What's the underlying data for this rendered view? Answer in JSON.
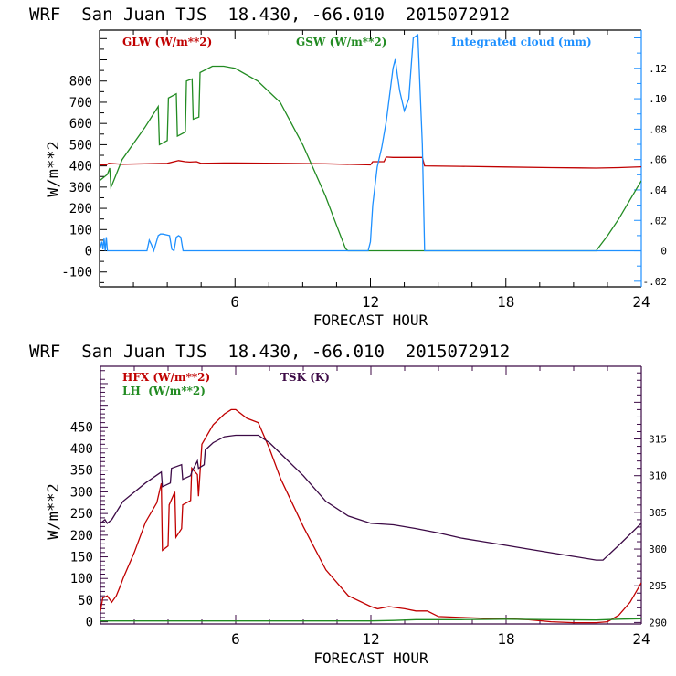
{
  "chart_data": [
    {
      "type": "line",
      "title": "WRF  San Juan TJS  18.430, -66.010  2015072912",
      "xlabel": "FORECAST HOUR",
      "ylabel": "W/m**2",
      "xlim": [
        0,
        24
      ],
      "xticks": [
        "6",
        "12",
        "18",
        "24"
      ],
      "xtick_values": [
        6,
        12,
        18,
        24
      ],
      "ylim": [
        -170,
        1040
      ],
      "yticks": [
        "-100",
        "0",
        "100",
        "200",
        "300",
        "400",
        "500",
        "600",
        "700",
        "800"
      ],
      "ytick_values": [
        -100,
        0,
        100,
        200,
        300,
        400,
        500,
        600,
        700,
        800
      ],
      "y2lim": [
        -0.0237,
        0.1451
      ],
      "y2ticks": [
        "-.02",
        "0",
        ".02",
        ".04",
        ".06",
        ".08",
        ".10",
        ".12"
      ],
      "y2tick_values": [
        -0.02,
        0,
        0.02,
        0.04,
        0.06,
        0.08,
        0.1,
        0.12
      ],
      "y2_color": "#1e90ff",
      "frame_color": "#000000",
      "legend": [
        {
          "label": "GLW (W/m**2)",
          "color": "#c00000",
          "position": "top-left"
        },
        {
          "label": "GSW (W/m**2)",
          "color": "#228b22",
          "position": "top-center"
        },
        {
          "label": "Integrated cloud (mm)",
          "color": "#1e90ff",
          "position": "top-right"
        }
      ],
      "series": [
        {
          "name": "GLW",
          "color": "#c00000",
          "axis": "left",
          "x": [
            0,
            0.3,
            0.4,
            1,
            2,
            3,
            3.5,
            3.8,
            4,
            4.3,
            4.5,
            5.5,
            6,
            8,
            10,
            12,
            12.1,
            12.6,
            12.7,
            13,
            14,
            14.3,
            14.4,
            16,
            18,
            20,
            22,
            23,
            24
          ],
          "y": [
            405,
            405,
            412,
            408,
            410,
            412,
            425,
            420,
            418,
            420,
            412,
            414,
            414,
            412,
            410,
            405,
            420,
            420,
            442,
            440,
            440,
            440,
            400,
            398,
            395,
            392,
            390,
            392,
            396
          ]
        },
        {
          "name": "GSW",
          "color": "#228b22",
          "axis": "left",
          "x": [
            0,
            0.35,
            0.45,
            0.5,
            0.55,
            1,
            2,
            2.6,
            2.65,
            3.0,
            3.05,
            3.4,
            3.45,
            3.8,
            3.85,
            4.1,
            4.15,
            4.4,
            4.45,
            5,
            5.5,
            6,
            7,
            8,
            9,
            10,
            10.5,
            10.9,
            11,
            22,
            22.5,
            23,
            23.5,
            24
          ],
          "y": [
            330,
            360,
            390,
            300,
            310,
            430,
            580,
            680,
            500,
            520,
            720,
            740,
            540,
            560,
            800,
            810,
            620,
            630,
            840,
            870,
            870,
            860,
            800,
            700,
            500,
            260,
            120,
            10,
            0,
            0,
            70,
            150,
            240,
            330
          ]
        },
        {
          "name": "Integrated cloud",
          "color": "#1e90ff",
          "axis": "right",
          "x": [
            0,
            0.05,
            0.1,
            0.15,
            0.2,
            0.25,
            0.3,
            0.35,
            0.4,
            0.5,
            1,
            2,
            2.1,
            2.2,
            2.3,
            2.4,
            2.5,
            2.6,
            2.7,
            2.8,
            3.1,
            3.2,
            3.3,
            3.4,
            3.5,
            3.6,
            3.7,
            3.8,
            3.9,
            4,
            11.9,
            12,
            12.1,
            12.3,
            12.5,
            12.7,
            13.0,
            13.1,
            13.2,
            13.3,
            13.5,
            13.7,
            13.9,
            14.1,
            14.3,
            14.4,
            24
          ],
          "y": [
            0.005,
            0.003,
            0.006,
            0.001,
            0.008,
            0.0,
            0.009,
            0.0,
            0.0,
            0.0,
            0.0,
            0.0,
            0.0,
            0.007,
            0.004,
            0.0,
            0.005,
            0.01,
            0.011,
            0.011,
            0.01,
            0.001,
            0.0,
            0.009,
            0.01,
            0.009,
            0.0,
            0.0,
            0.0,
            0.0,
            0.0,
            0.006,
            0.03,
            0.055,
            0.068,
            0.085,
            0.12,
            0.126,
            0.115,
            0.105,
            0.092,
            0.1,
            0.14,
            0.142,
            0.07,
            0.0,
            0.0
          ]
        }
      ]
    },
    {
      "type": "line",
      "title": "WRF  San Juan TJS  18.430, -66.010  2015072912",
      "xlabel": "FORECAST HOUR",
      "ylabel": "W/m**2",
      "xlim": [
        0,
        24
      ],
      "xticks": [
        "6",
        "12",
        "18",
        "24"
      ],
      "xtick_values": [
        6,
        12,
        18,
        24
      ],
      "ylim": [
        -5,
        590
      ],
      "yticks": [
        "0",
        "50",
        "100",
        "150",
        "200",
        "250",
        "300",
        "350",
        "400",
        "450"
      ],
      "ytick_values": [
        0,
        50,
        100,
        150,
        200,
        250,
        300,
        350,
        400,
        450
      ],
      "y2lim": [
        289.8,
        324.9
      ],
      "y2ticks": [
        "290",
        "295",
        "300",
        "305",
        "310",
        "315"
      ],
      "y2tick_values": [
        290,
        295,
        300,
        305,
        310,
        315
      ],
      "y2_color": "#3c0a46",
      "frame_color": "#3c0a46",
      "legend": [
        {
          "label": "HFX (W/m**2)",
          "color": "#c00000",
          "position": "top-left"
        },
        {
          "label": "LH  (W/m**2)",
          "color": "#228b22",
          "position": "top-left"
        },
        {
          "label": "TSK (K)",
          "color": "#3c0a46",
          "position": "top-center"
        }
      ],
      "series": [
        {
          "name": "HFX",
          "color": "#c00000",
          "axis": "left",
          "x": [
            0,
            0.1,
            0.3,
            0.5,
            0.7,
            0.9,
            1,
            1.5,
            2,
            2.5,
            2.7,
            2.75,
            3.0,
            3.05,
            3.3,
            3.35,
            3.6,
            3.65,
            4.0,
            4.05,
            4.3,
            4.35,
            4.5,
            5,
            5.5,
            5.8,
            6,
            6.5,
            7,
            7.5,
            8,
            9,
            10,
            11,
            12,
            12.3,
            12.8,
            13.5,
            14,
            14.5,
            15,
            16,
            17,
            18,
            19,
            20,
            21,
            22,
            22.5,
            23,
            23.5,
            24
          ],
          "y": [
            25,
            55,
            60,
            45,
            60,
            85,
            100,
            160,
            230,
            275,
            320,
            165,
            175,
            270,
            300,
            195,
            215,
            270,
            280,
            355,
            340,
            290,
            410,
            455,
            480,
            490,
            490,
            470,
            460,
            400,
            330,
            220,
            120,
            60,
            35,
            30,
            35,
            30,
            25,
            25,
            12,
            10,
            8,
            7,
            5,
            0,
            -2,
            -2,
            0,
            15,
            45,
            90
          ]
        },
        {
          "name": "LH",
          "color": "#228b22",
          "axis": "left",
          "x": [
            0,
            6,
            12,
            13,
            14,
            16,
            18,
            20,
            22,
            23,
            24
          ],
          "y": [
            2,
            2,
            2,
            3,
            5,
            5,
            6,
            5,
            4,
            6,
            7
          ]
        },
        {
          "name": "TSK",
          "color": "#3c0a46",
          "axis": "right",
          "x": [
            0,
            0.2,
            0.3,
            0.5,
            0.8,
            1,
            2,
            2.7,
            2.75,
            3.1,
            3.15,
            3.6,
            3.65,
            4.0,
            4.05,
            4.3,
            4.35,
            4.6,
            4.65,
            5,
            5.5,
            6,
            7,
            7.5,
            8,
            9,
            10,
            11,
            12,
            13,
            14,
            15,
            16,
            17,
            18,
            19,
            20,
            21,
            22,
            22.3,
            23,
            24
          ],
          "y": [
            303.5,
            304.0,
            303.5,
            304.0,
            305.5,
            306.5,
            309.0,
            310.5,
            308.5,
            309.0,
            311.0,
            311.5,
            309.5,
            310.0,
            310.5,
            312.0,
            311.0,
            311.5,
            313.5,
            314.5,
            315.3,
            315.5,
            315.5,
            314.5,
            313.0,
            310.0,
            306.5,
            304.5,
            303.5,
            303.3,
            302.8,
            302.2,
            301.5,
            301.0,
            300.5,
            300.0,
            299.5,
            299.0,
            298.5,
            298.5,
            300.5,
            303.5
          ]
        }
      ]
    }
  ]
}
